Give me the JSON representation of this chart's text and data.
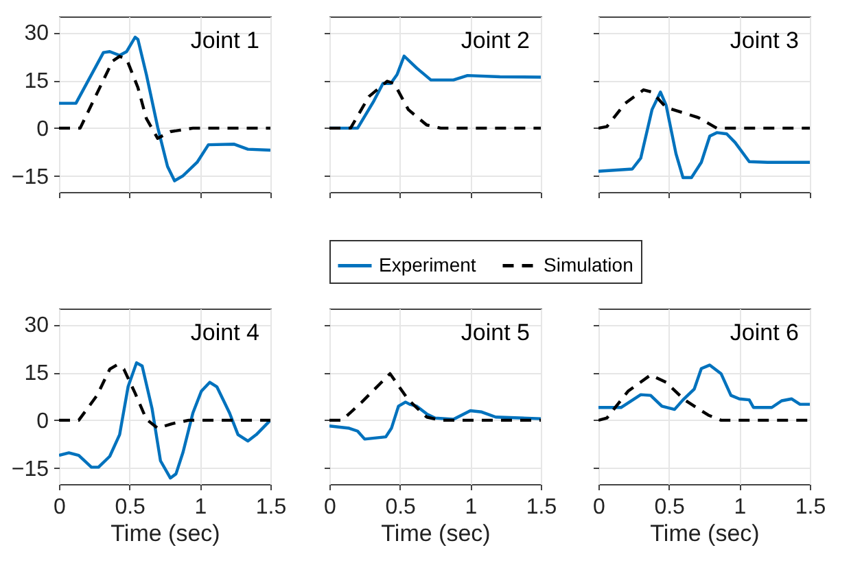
{
  "chart_data": [
    {
      "type": "line",
      "title": "Joint 1",
      "xlim": [
        0,
        1.5
      ],
      "xticks": [
        0,
        0.5,
        1,
        1.5
      ],
      "ylim": [
        -20,
        35
      ],
      "yticks": [
        -15,
        0,
        15,
        30
      ],
      "grid": true,
      "tick_labels": "y",
      "series": [
        {
          "color": "#0072bd",
          "line_style": "solid",
          "x": [
            0,
            0.12,
            0.315,
            0.36,
            0.43,
            0.48,
            0.54,
            0.56,
            0.62,
            0.7,
            0.77,
            0.82,
            0.88,
            0.98,
            1.06,
            1.24,
            1.34,
            1.5
          ],
          "values": [
            7.8,
            7.8,
            23.7,
            24,
            22.8,
            24,
            28.5,
            27.8,
            16.8,
            0.3,
            -12,
            -16.5,
            -14.9,
            -10.7,
            -5.2,
            -5,
            -6.6,
            -6.9
          ]
        },
        {
          "color": "#000000",
          "line_style": "dashed",
          "x": [
            0,
            0.15,
            0.38,
            0.43,
            0.48,
            0.56,
            0.62,
            0.7,
            0.79,
            0.95,
            1.5
          ],
          "values": [
            0,
            0,
            21,
            22.5,
            21.6,
            12.7,
            3,
            -3.2,
            -1.1,
            0,
            0
          ]
        }
      ]
    },
    {
      "type": "line",
      "title": "Joint 2",
      "xlim": [
        0,
        1.5
      ],
      "xticks": [
        0,
        0.5,
        1,
        1.5
      ],
      "ylim": [
        -20,
        35
      ],
      "yticks": [
        -15,
        0,
        15,
        30
      ],
      "grid": true,
      "tick_labels": false,
      "legend": "bottom",
      "series": [
        {
          "name": "Experiment",
          "color": "#0072bd",
          "line_style": "solid",
          "x": [
            0,
            0.2,
            0.315,
            0.38,
            0.435,
            0.48,
            0.53,
            0.62,
            0.72,
            0.88,
            0.98,
            1.21,
            1.5
          ],
          "values": [
            0,
            0,
            8.5,
            14,
            14,
            16.8,
            22.6,
            18.8,
            15.1,
            15.1,
            16.5,
            16.1,
            16
          ]
        },
        {
          "name": "Simulation",
          "color": "#000000",
          "line_style": "dashed",
          "x": [
            0,
            0.15,
            0.28,
            0.41,
            0.46,
            0.56,
            0.69,
            0.79,
            1.5
          ],
          "values": [
            0,
            0,
            9.9,
            14.7,
            14,
            5.8,
            1,
            0,
            0
          ]
        }
      ]
    },
    {
      "type": "line",
      "title": "Joint 3",
      "xlim": [
        0,
        1.5
      ],
      "xticks": [
        0,
        0.5,
        1,
        1.5
      ],
      "ylim": [
        -20,
        35
      ],
      "yticks": [
        -15,
        0,
        15,
        30
      ],
      "grid": true,
      "tick_labels": false,
      "series": [
        {
          "color": "#0072bd",
          "line_style": "solid",
          "x": [
            0,
            0.24,
            0.3,
            0.38,
            0.44,
            0.48,
            0.55,
            0.6,
            0.66,
            0.73,
            0.79,
            0.84,
            0.91,
            0.97,
            1.07,
            1.2,
            1.5
          ],
          "values": [
            -13.5,
            -12.8,
            -9.4,
            5.8,
            11.3,
            7.2,
            -8,
            -15.5,
            -15.5,
            -10.7,
            -2.5,
            -1.4,
            -1.8,
            -4.5,
            -10.5,
            -10.7,
            -10.7
          ]
        },
        {
          "color": "#000000",
          "line_style": "dashed",
          "x": [
            0,
            0.06,
            0.19,
            0.32,
            0.38,
            0.48,
            0.61,
            0.71,
            0.84,
            1.5
          ],
          "values": [
            0,
            0.5,
            7.8,
            12,
            11.3,
            6.5,
            4.7,
            3.3,
            0,
            0
          ]
        }
      ]
    },
    {
      "type": "line",
      "title": "Joint 4",
      "xlabel": "Time (sec)",
      "xlim": [
        0,
        1.5
      ],
      "xticks": [
        0,
        0.5,
        1,
        1.5
      ],
      "ylim": [
        -20,
        35
      ],
      "yticks": [
        -15,
        0,
        15,
        30
      ],
      "grid": true,
      "series": [
        {
          "color": "#0072bd",
          "line_style": "solid",
          "x": [
            0,
            0.07,
            0.14,
            0.23,
            0.28,
            0.36,
            0.43,
            0.49,
            0.55,
            0.59,
            0.66,
            0.72,
            0.79,
            0.83,
            0.88,
            0.95,
            1.01,
            1.07,
            1.12,
            1.21,
            1.27,
            1.34,
            1.4,
            1.5
          ],
          "values": [
            -11,
            -10.2,
            -11,
            -14.7,
            -14.7,
            -11.3,
            -4.5,
            10.5,
            18,
            17,
            3.7,
            -12.7,
            -18.1,
            -16.8,
            -10,
            2.3,
            9.1,
            11.9,
            10.5,
            2.3,
            -4.5,
            -6.5,
            -4.5,
            0
          ]
        },
        {
          "color": "#000000",
          "line_style": "dashed",
          "x": [
            0,
            0.14,
            0.27,
            0.36,
            0.41,
            0.46,
            0.54,
            0.62,
            0.7,
            0.8,
            0.92,
            1.5
          ],
          "values": [
            0,
            0,
            7.8,
            16,
            17.3,
            16,
            8.5,
            0.3,
            -2.5,
            -1.1,
            0,
            0
          ]
        }
      ]
    },
    {
      "type": "line",
      "title": "Joint 5",
      "xlabel": "Time (sec)",
      "xlim": [
        0,
        1.5
      ],
      "xticks": [
        0,
        0.5,
        1,
        1.5
      ],
      "ylim": [
        -20,
        35
      ],
      "yticks": [
        -15,
        0,
        15,
        30
      ],
      "grid": true,
      "tick_labels": "x",
      "series": [
        {
          "color": "#0072bd",
          "line_style": "solid",
          "x": [
            0,
            0.14,
            0.2,
            0.25,
            0.4,
            0.44,
            0.49,
            0.54,
            0.57,
            0.62,
            0.69,
            0.75,
            0.88,
            1.0,
            1.08,
            1.18,
            1.5
          ],
          "values": [
            -1.8,
            -2.5,
            -3.4,
            -5.9,
            -5.2,
            -2.5,
            4.4,
            5.7,
            5,
            4.4,
            2,
            0.7,
            0.3,
            3,
            2.6,
            1,
            0.5
          ]
        },
        {
          "color": "#000000",
          "line_style": "dashed",
          "x": [
            0,
            0.09,
            0.23,
            0.43,
            0.56,
            0.69,
            0.79,
            1.5
          ],
          "values": [
            0,
            0,
            5.7,
            14.6,
            6.4,
            1,
            0,
            0
          ]
        }
      ]
    },
    {
      "type": "line",
      "title": "Joint 6",
      "xlabel": "Time (sec)",
      "xlim": [
        0,
        1.5
      ],
      "xticks": [
        0,
        0.5,
        1,
        1.5
      ],
      "ylim": [
        -20,
        35
      ],
      "yticks": [
        -15,
        0,
        15,
        30
      ],
      "grid": true,
      "tick_labels": "x",
      "series": [
        {
          "color": "#0072bd",
          "line_style": "solid",
          "x": [
            0,
            0.16,
            0.3,
            0.37,
            0.45,
            0.54,
            0.6,
            0.68,
            0.73,
            0.79,
            0.87,
            0.94,
            1.0,
            1.07,
            1.1,
            1.23,
            1.3,
            1.37,
            1.43,
            1.5
          ],
          "values": [
            4,
            4,
            8,
            7.8,
            4.4,
            3.4,
            6.4,
            9.8,
            16.2,
            17.3,
            14.6,
            7.8,
            6.7,
            6.4,
            4,
            4,
            6.1,
            6.7,
            5,
            5
          ]
        },
        {
          "color": "#000000",
          "line_style": "dashed",
          "x": [
            0,
            0.06,
            0.21,
            0.37,
            0.48,
            0.61,
            0.78,
            0.87,
            1.5
          ],
          "values": [
            0,
            0.7,
            9.1,
            14.2,
            11.9,
            6.4,
            1.6,
            0,
            0
          ]
        }
      ]
    }
  ]
}
